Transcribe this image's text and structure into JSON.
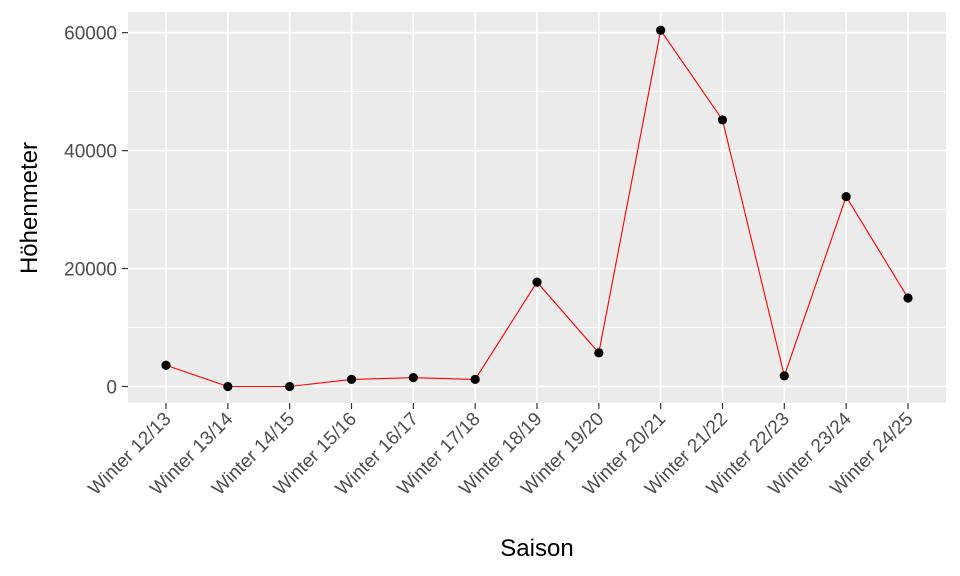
{
  "chart_data": {
    "type": "line",
    "title": "",
    "xlabel": "Saison",
    "ylabel": "Höhenmeter",
    "categories": [
      "Winter 12/13",
      "Winter 13/14",
      "Winter 14/15",
      "Winter 15/16",
      "Winter 16/17",
      "Winter 17/18",
      "Winter 18/19",
      "Winter 19/20",
      "Winter 20/21",
      "Winter 21/22",
      "Winter 22/23",
      "Winter 23/24",
      "Winter 24/25"
    ],
    "values": [
      3600,
      0,
      0,
      1200,
      1500,
      1200,
      17700,
      5700,
      60400,
      45200,
      1800,
      32200,
      15000
    ],
    "ylim": [
      -2800,
      63500
    ],
    "yticks": [
      0,
      20000,
      40000,
      60000
    ],
    "ytick_labels": [
      "0",
      "20000",
      "40000",
      "60000"
    ],
    "grid": true,
    "colors": {
      "line": "#ff0000",
      "point": "#000000",
      "panel": "#ebebeb",
      "grid": "#ffffff"
    }
  }
}
